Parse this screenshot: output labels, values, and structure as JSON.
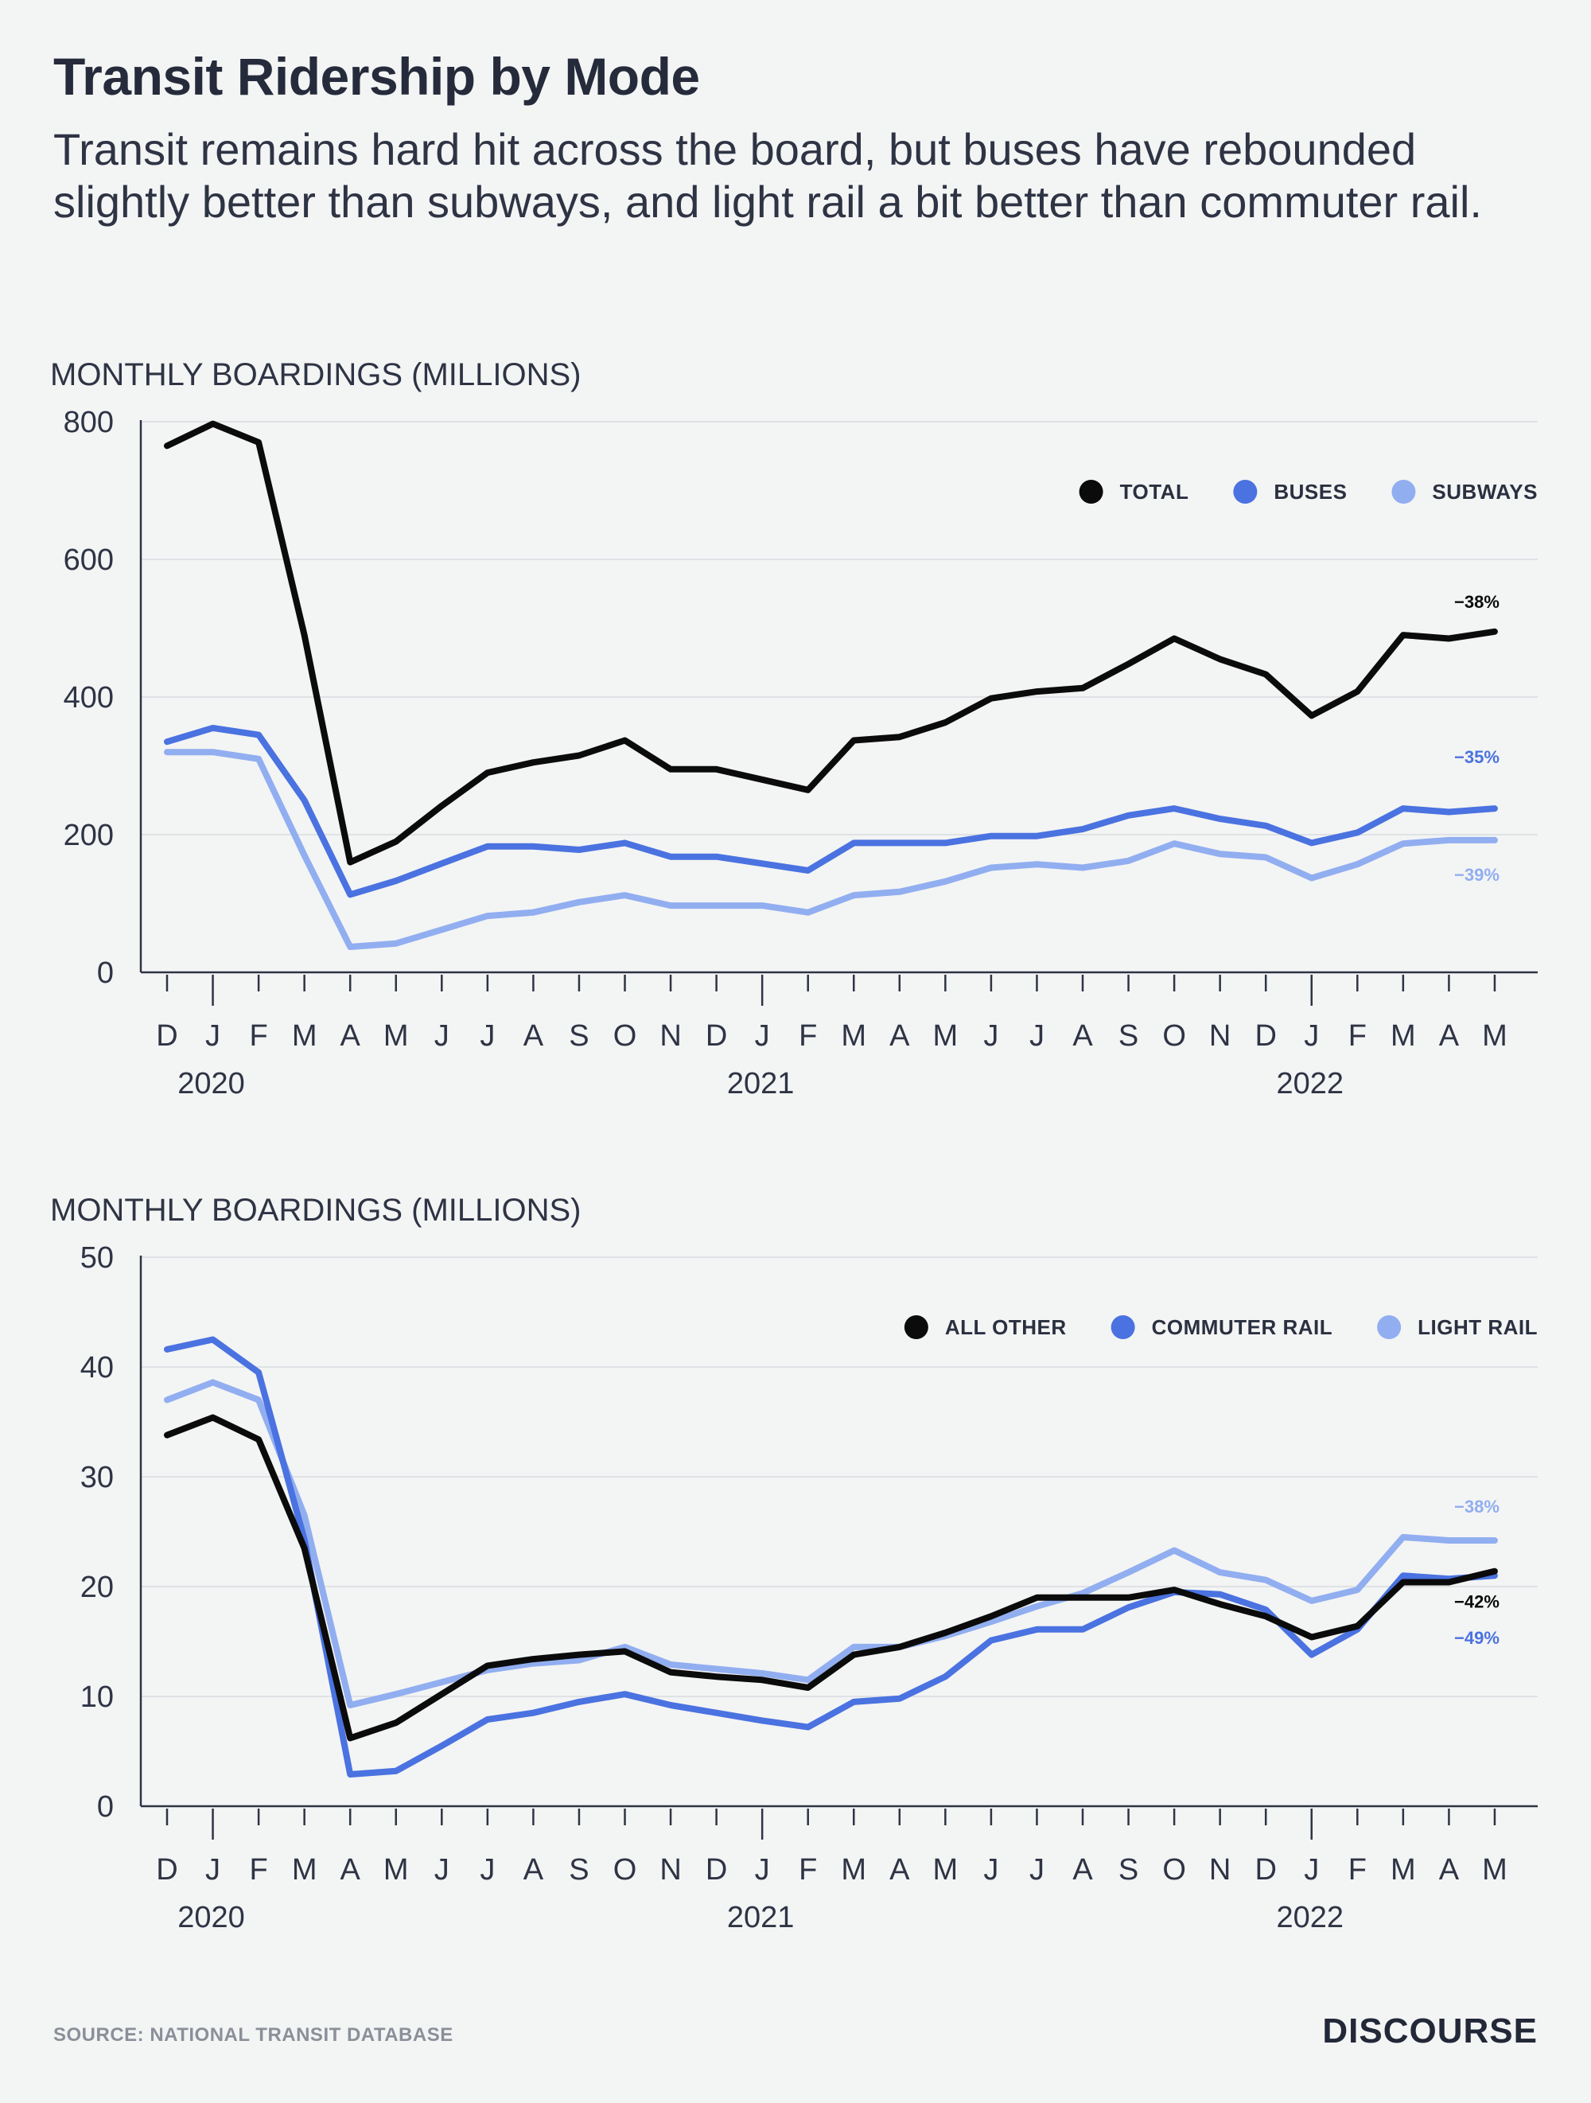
{
  "header": {
    "title": "Transit Ridership by Mode",
    "subtitle": "Transit remains hard hit across the board, but buses have rebounded slightly better than subways, and light rail a bit better than commuter rail."
  },
  "footer": {
    "source": "SOURCE:  NATIONAL TRANSIT DATABASE",
    "brand": "DISCOURSE"
  },
  "colors": {
    "black": "#0b0b0b",
    "blue": "#4a72e0",
    "light_blue": "#91aef0",
    "grid": "#dfe2e5",
    "axis": "#2e3444"
  },
  "chart_data": [
    {
      "type": "line",
      "ylabel": "MONTHLY BOARDINGS (MILLIONS)",
      "ylim": [
        0,
        800
      ],
      "yticks": [
        0,
        200,
        400,
        600,
        800
      ],
      "categories": [
        "D",
        "J",
        "F",
        "M",
        "A",
        "M",
        "J",
        "J",
        "A",
        "S",
        "O",
        "N",
        "D",
        "J",
        "F",
        "M",
        "A",
        "M",
        "J",
        "J",
        "A",
        "S",
        "O",
        "N",
        "D",
        "J",
        "F",
        "M",
        "A",
        "M"
      ],
      "year_labels": [
        {
          "label": "2020",
          "index": 1
        },
        {
          "label": "2021",
          "index": 13
        },
        {
          "label": "2022",
          "index": 25
        }
      ],
      "grid": true,
      "legend": "top-right",
      "series": [
        {
          "name": "TOTAL",
          "color": "#0b0b0b",
          "values": [
            765,
            797,
            770,
            490,
            160,
            190,
            242,
            290,
            305,
            315,
            337,
            295,
            295,
            280,
            265,
            337,
            342,
            363,
            398,
            408,
            413,
            448,
            485,
            455,
            433,
            373,
            408,
            490,
            485,
            495
          ],
          "end_label": "−38%"
        },
        {
          "name": "BUSES",
          "color": "#4a72e0",
          "values": [
            335,
            355,
            345,
            250,
            113,
            133,
            158,
            183,
            183,
            178,
            188,
            168,
            168,
            158,
            148,
            188,
            188,
            188,
            198,
            198,
            208,
            228,
            238,
            223,
            213,
            188,
            203,
            238,
            233,
            238
          ],
          "end_label": "−35%"
        },
        {
          "name": "SUBWAYS",
          "color": "#91aef0",
          "values": [
            320,
            320,
            310,
            170,
            37,
            42,
            62,
            82,
            87,
            102,
            112,
            97,
            97,
            97,
            87,
            112,
            117,
            132,
            152,
            157,
            152,
            162,
            187,
            172,
            167,
            137,
            157,
            187,
            192,
            192
          ],
          "end_label": "−39%"
        }
      ]
    },
    {
      "type": "line",
      "ylabel": "MONTHLY BOARDINGS (MILLIONS)",
      "ylim": [
        0,
        50
      ],
      "yticks": [
        0,
        10,
        20,
        30,
        40,
        50
      ],
      "categories": [
        "D",
        "J",
        "F",
        "M",
        "A",
        "M",
        "J",
        "J",
        "A",
        "S",
        "O",
        "N",
        "D",
        "J",
        "F",
        "M",
        "A",
        "M",
        "J",
        "J",
        "A",
        "S",
        "O",
        "N",
        "D",
        "J",
        "F",
        "M",
        "A",
        "M"
      ],
      "year_labels": [
        {
          "label": "2020",
          "index": 1
        },
        {
          "label": "2021",
          "index": 13
        },
        {
          "label": "2022",
          "index": 25
        }
      ],
      "grid": true,
      "legend": "top-right",
      "series": [
        {
          "name": "ALL OTHER",
          "color": "#0b0b0b",
          "values": [
            33.8,
            35.4,
            33.4,
            23.5,
            6.2,
            7.6,
            10.2,
            12.8,
            13.4,
            13.8,
            14.1,
            12.2,
            11.8,
            11.5,
            10.8,
            13.8,
            14.5,
            15.8,
            17.3,
            19,
            19,
            19,
            19.7,
            18.4,
            17.3,
            15.4,
            16.4,
            20.4,
            20.4,
            21.4
          ],
          "end_label": "−42%"
        },
        {
          "name": "COMMUTER RAIL",
          "color": "#4a72e0",
          "values": [
            41.6,
            42.5,
            39.5,
            24.3,
            2.9,
            3.2,
            5.5,
            7.9,
            8.5,
            9.5,
            10.2,
            9.2,
            8.5,
            7.8,
            7.2,
            9.5,
            9.8,
            11.8,
            15.1,
            16.1,
            16.1,
            18.1,
            19.5,
            19.3,
            17.9,
            13.8,
            16.1,
            21,
            20.7,
            21
          ],
          "end_label": "−49%"
        },
        {
          "name": "LIGHT RAIL",
          "color": "#91aef0",
          "values": [
            37,
            38.6,
            37,
            26.5,
            9.2,
            10.2,
            11.3,
            12.4,
            13,
            13.3,
            14.5,
            12.9,
            12.5,
            12.1,
            11.5,
            14.5,
            14.5,
            15.5,
            16.8,
            18.2,
            19.4,
            21.3,
            23.3,
            21.3,
            20.6,
            18.7,
            19.7,
            24.5,
            24.2,
            24.2
          ],
          "end_label": "−38%"
        }
      ]
    }
  ]
}
